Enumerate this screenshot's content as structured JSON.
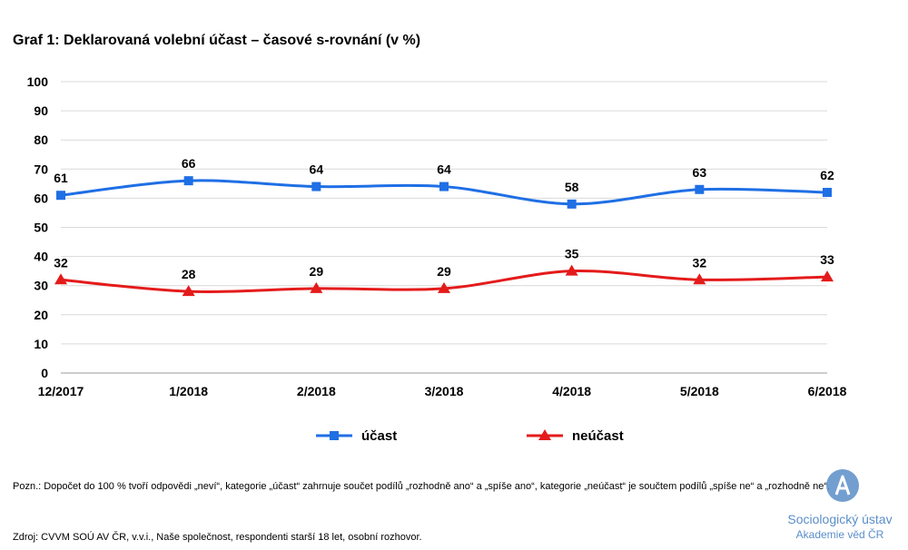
{
  "title": "Graf 1: Deklarovaná volební účast – časové s-rovnání (v %)",
  "note": "Pozn.: Dopočet do 100 % tvoří odpovědi „neví“, kategorie „účast“ zahrnuje součet podílů „rozhodně ano“ a „spíše ano“, kategorie „neúčast“ je součtem podílů „spíše ne“ a „rozhodně ne“.",
  "source": "Zdroj: CVVM SOÚ AV ČR, v.v.i., Naše společnost, respondenti starší 18 let, osobní rozhovor.",
  "logo": {
    "line1": "Sociologický ústav",
    "line2": "Akademie věd ČR"
  },
  "chart_data": {
    "type": "line",
    "categories": [
      "12/2017",
      "1/2018",
      "2/2018",
      "3/2018",
      "4/2018",
      "5/2018",
      "6/2018"
    ],
    "ylim": [
      0,
      100
    ],
    "yticks": [
      0,
      10,
      20,
      30,
      40,
      50,
      60,
      70,
      80,
      90,
      100
    ],
    "grid": true,
    "legend": "bottom",
    "series": [
      {
        "name": "účast",
        "values": [
          61,
          66,
          64,
          64,
          58,
          63,
          62
        ],
        "color": "#1f6fe5",
        "marker": "square"
      },
      {
        "name": "neúčast",
        "values": [
          32,
          28,
          29,
          29,
          35,
          32,
          33
        ],
        "color": "#e41b1b",
        "marker": "triangle"
      }
    ]
  }
}
